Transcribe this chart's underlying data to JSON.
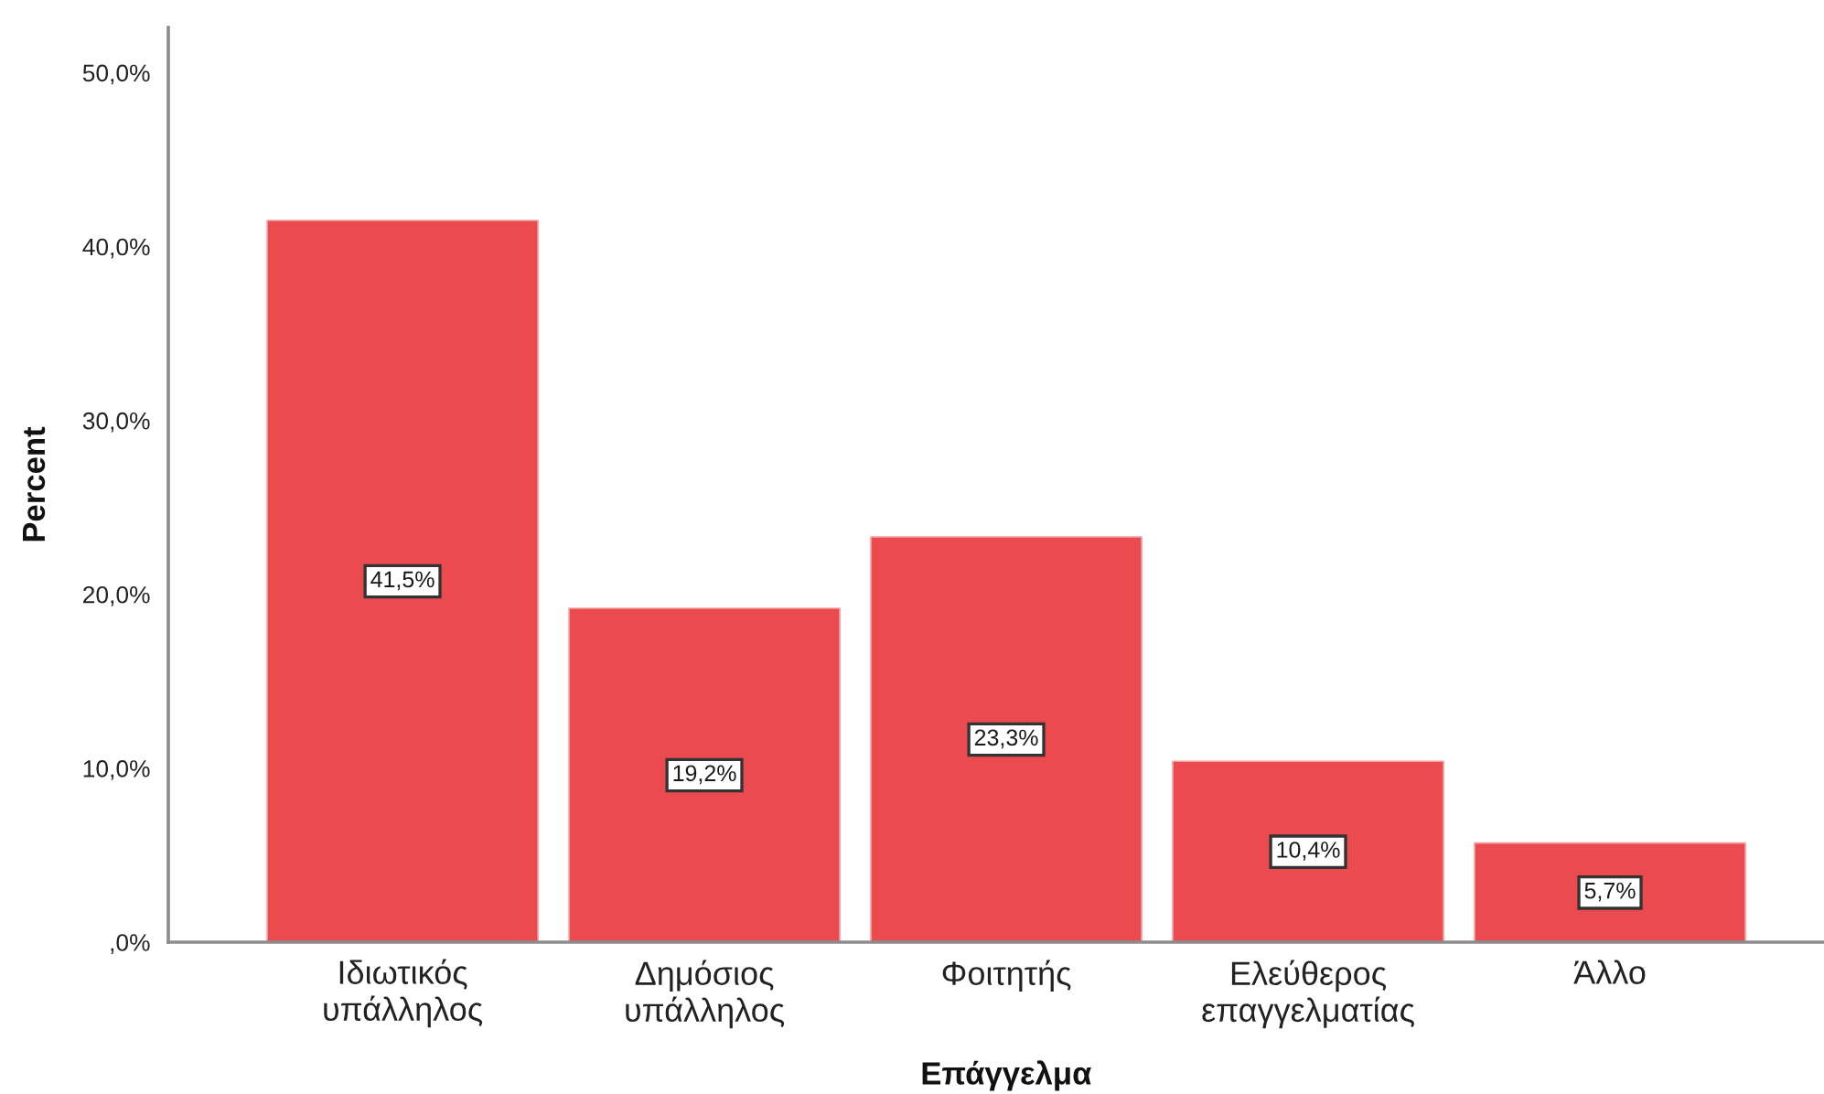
{
  "chart_data": {
    "type": "bar",
    "xlabel": "Επάγγελμα",
    "ylabel": "Percent",
    "categories": [
      "Ιδιωτικός\nυπάλληλος",
      "Δημόσιος\nυπάλληλος",
      "Φοιτητής",
      "Ελεύθερος\nεπαγγελματίας",
      "Άλλο"
    ],
    "values": [
      41.5,
      19.2,
      23.3,
      10.4,
      5.7
    ],
    "value_labels": [
      "41,5%",
      "19,2%",
      "23,3%",
      "10,4%",
      "5,7%"
    ],
    "color": "#eb4b4f",
    "ylim": [
      0,
      52.6
    ],
    "yticks": [
      {
        "value": 0,
        "label": ",0%"
      },
      {
        "value": 10,
        "label": "10,0%"
      },
      {
        "value": 20,
        "label": "20,0%"
      },
      {
        "value": 30,
        "label": "30,0%"
      },
      {
        "value": 40,
        "label": "40,0%"
      },
      {
        "value": 50,
        "label": "50,0%"
      }
    ]
  }
}
